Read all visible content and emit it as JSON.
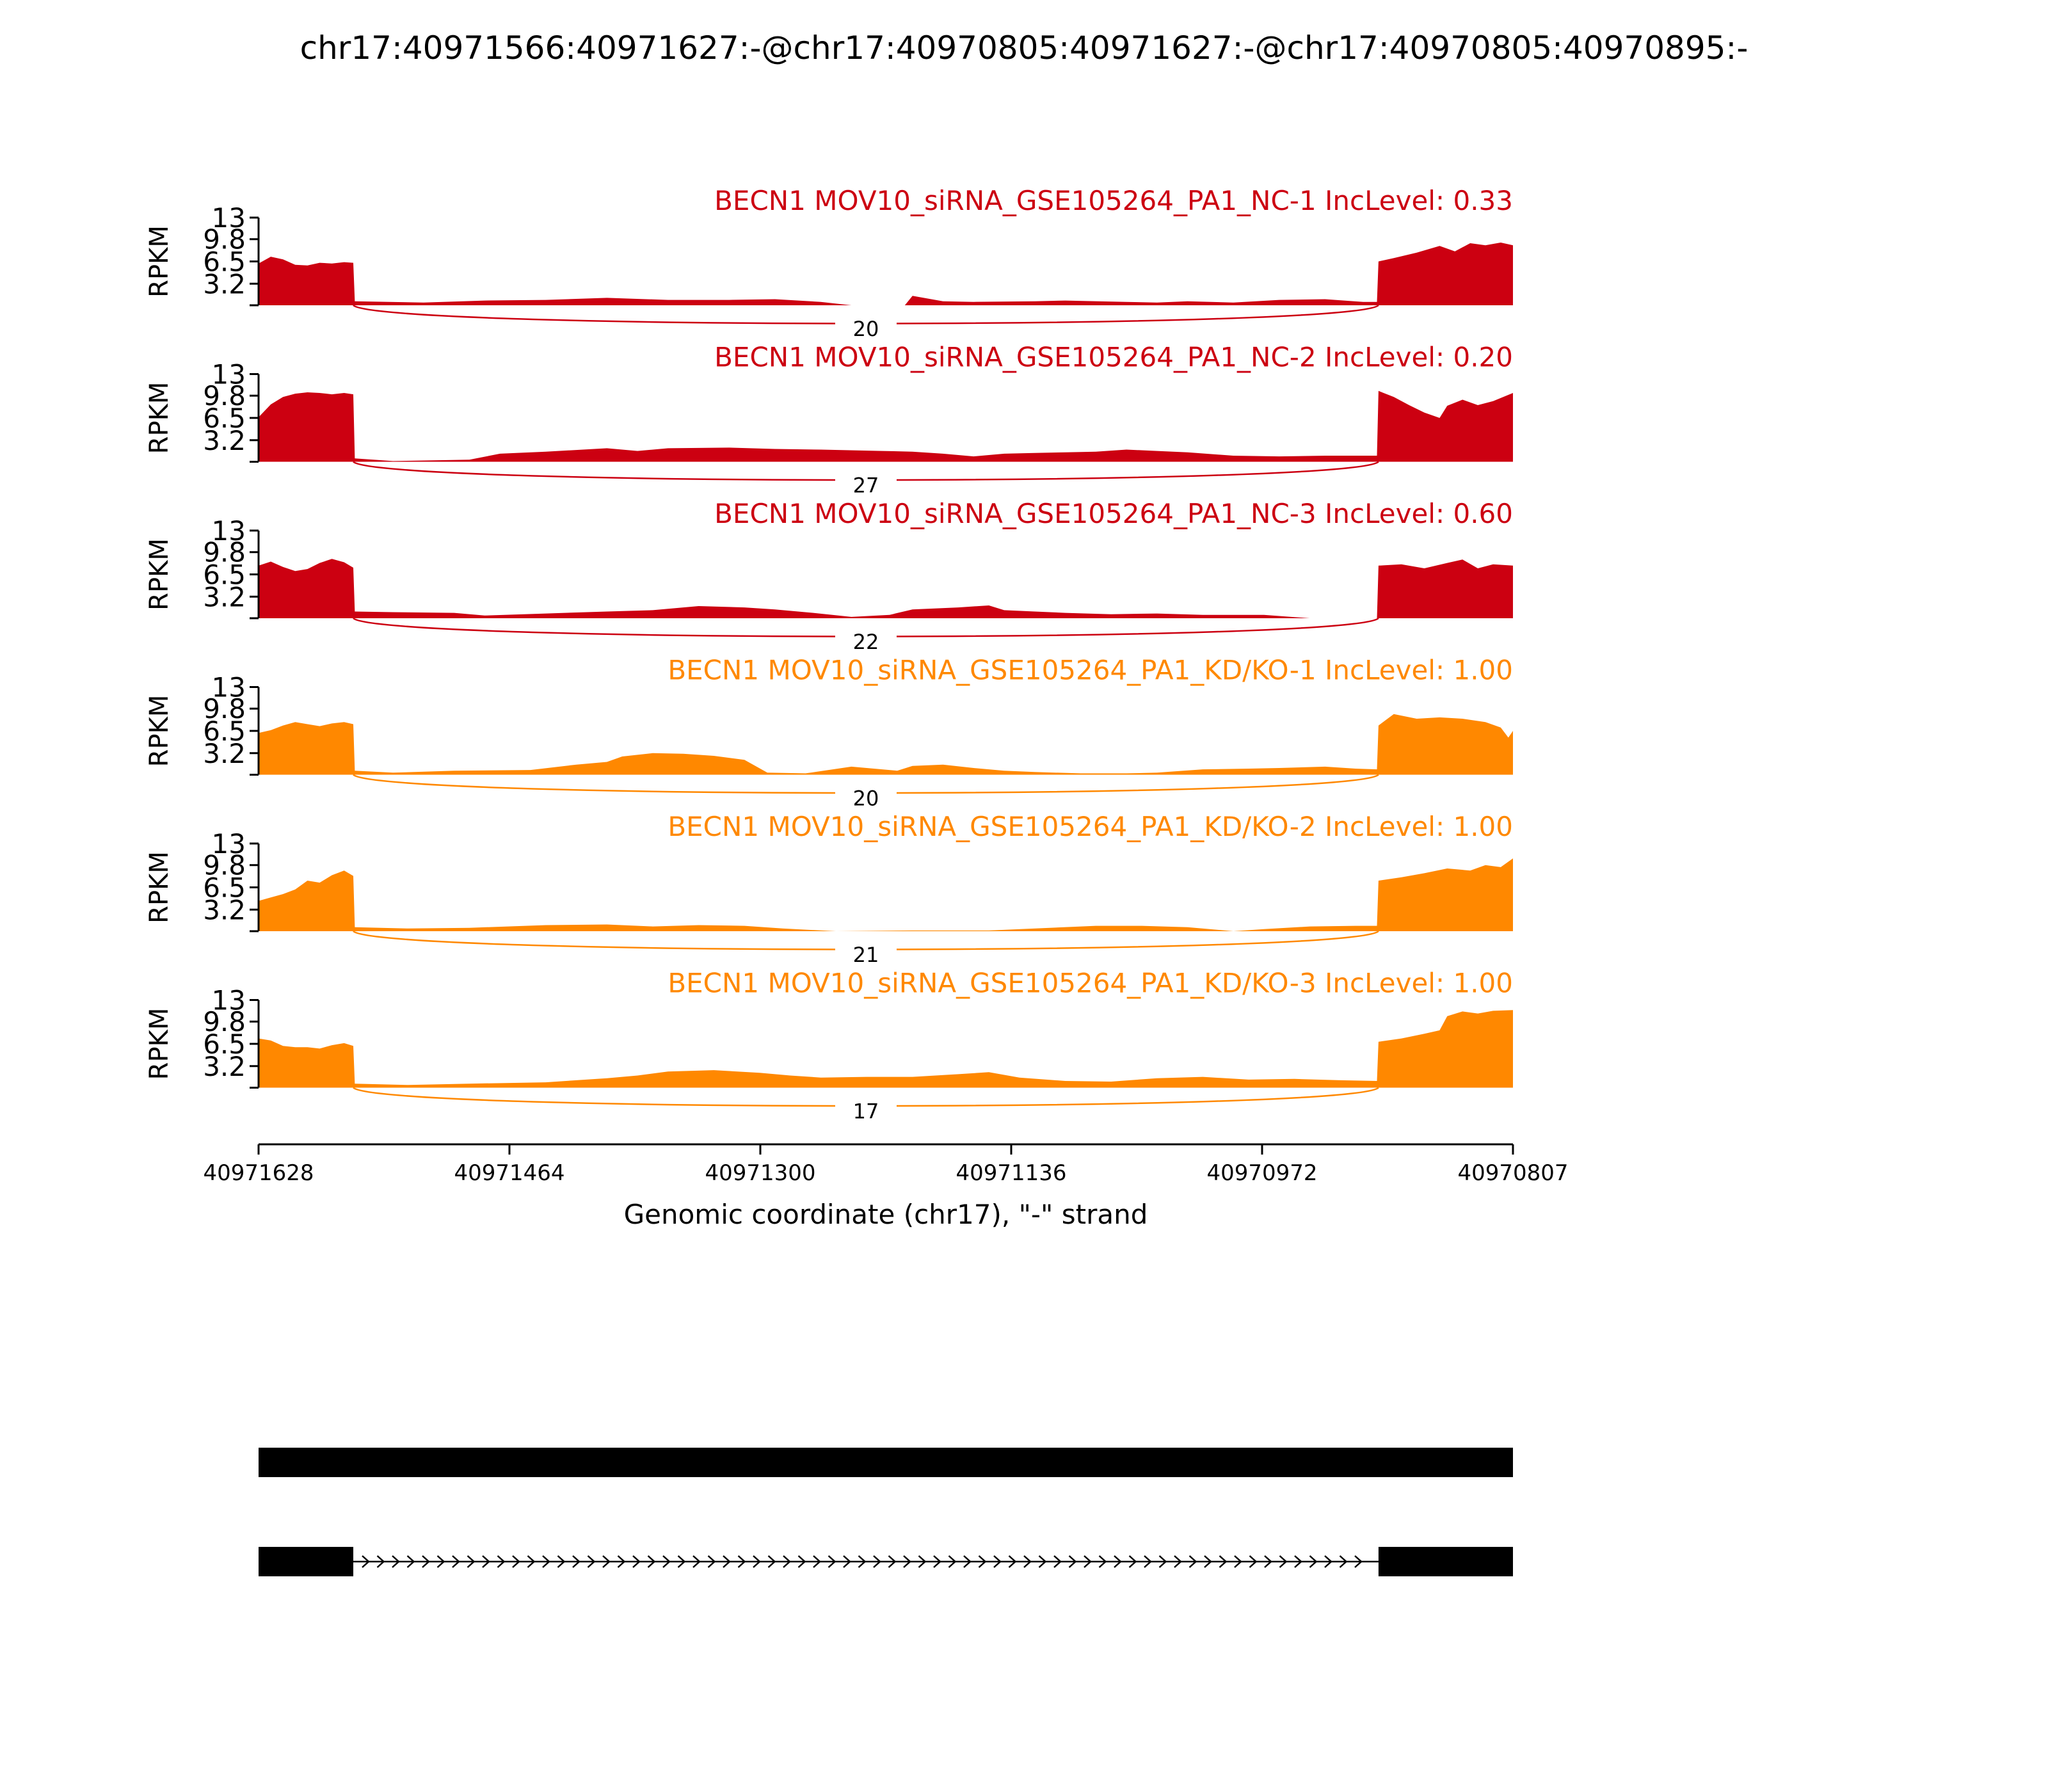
{
  "chart_data": {
    "type": "area",
    "title": "chr17:40971566:40971627:-@chr17:40970805:40971627:-@chr17:40970805:40970895:-",
    "xlabel": "Genomic coordinate (chr17), \"-\" strand",
    "ylabel": "RPKM",
    "x_reversed": true,
    "xlim": [
      40971628,
      40970807
    ],
    "x_ticks": [
      "40971628",
      "40971464",
      "40971300",
      "40971136",
      "40970972",
      "40970807"
    ],
    "ylim": [
      0,
      13
    ],
    "y_ticks": [
      "13",
      "9.8",
      "6.5",
      "3.2"
    ],
    "exons": [
      [
        40971628,
        40971566
      ],
      [
        40970895,
        40970807
      ]
    ],
    "colors": {
      "NC": "#cc0011",
      "KD": "#ff8800"
    },
    "tracks": [
      {
        "name": "BECN1 MOV10_siRNA_GSE105264_PA1_NC-1 IncLevel: 0.33",
        "group": "NC",
        "junction_count": "20",
        "coverage": [
          [
            40971628,
            6.2
          ],
          [
            40971620,
            7.2
          ],
          [
            40971612,
            6.8
          ],
          [
            40971604,
            6.0
          ],
          [
            40971596,
            5.9
          ],
          [
            40971588,
            6.3
          ],
          [
            40971580,
            6.2
          ],
          [
            40971572,
            6.4
          ],
          [
            40971566,
            6.3
          ],
          [
            40971565,
            0.6
          ],
          [
            40971520,
            0.4
          ],
          [
            40971480,
            0.7
          ],
          [
            40971440,
            0.8
          ],
          [
            40971400,
            1.1
          ],
          [
            40971360,
            0.8
          ],
          [
            40971320,
            0.8
          ],
          [
            40971290,
            0.9
          ],
          [
            40971260,
            0.5
          ],
          [
            40971240,
            0.0
          ],
          [
            40971205,
            0.0
          ],
          [
            40971200,
            1.4
          ],
          [
            40971180,
            0.6
          ],
          [
            40971160,
            0.5
          ],
          [
            40971120,
            0.6
          ],
          [
            40971100,
            0.7
          ],
          [
            40971060,
            0.5
          ],
          [
            40971040,
            0.4
          ],
          [
            40971020,
            0.6
          ],
          [
            40970990,
            0.4
          ],
          [
            40970960,
            0.8
          ],
          [
            40970930,
            0.9
          ],
          [
            40970905,
            0.5
          ],
          [
            40970896,
            0.5
          ],
          [
            40970895,
            6.5
          ],
          [
            40970885,
            7.0
          ],
          [
            40970870,
            7.8
          ],
          [
            40970855,
            8.8
          ],
          [
            40970845,
            8.0
          ],
          [
            40970835,
            9.2
          ],
          [
            40970825,
            8.9
          ],
          [
            40970815,
            9.3
          ],
          [
            40970807,
            8.9
          ]
        ]
      },
      {
        "name": "BECN1 MOV10_siRNA_GSE105264_PA1_NC-2 IncLevel: 0.20",
        "group": "NC",
        "junction_count": "27",
        "coverage": [
          [
            40971628,
            6.6
          ],
          [
            40971620,
            8.5
          ],
          [
            40971612,
            9.6
          ],
          [
            40971604,
            10.1
          ],
          [
            40971596,
            10.3
          ],
          [
            40971588,
            10.2
          ],
          [
            40971580,
            10.0
          ],
          [
            40971572,
            10.2
          ],
          [
            40971566,
            10.0
          ],
          [
            40971565,
            0.5
          ],
          [
            40971540,
            0.1
          ],
          [
            40971490,
            0.3
          ],
          [
            40971470,
            1.2
          ],
          [
            40971440,
            1.5
          ],
          [
            40971400,
            2.0
          ],
          [
            40971380,
            1.6
          ],
          [
            40971360,
            2.0
          ],
          [
            40971320,
            2.1
          ],
          [
            40971290,
            1.9
          ],
          [
            40971260,
            1.8
          ],
          [
            40971220,
            1.6
          ],
          [
            40971200,
            1.5
          ],
          [
            40971180,
            1.2
          ],
          [
            40971160,
            0.8
          ],
          [
            40971140,
            1.2
          ],
          [
            40971120,
            1.3
          ],
          [
            40971100,
            1.4
          ],
          [
            40971080,
            1.5
          ],
          [
            40971060,
            1.8
          ],
          [
            40971040,
            1.6
          ],
          [
            40971020,
            1.4
          ],
          [
            40970990,
            0.9
          ],
          [
            40970960,
            0.8
          ],
          [
            40970930,
            0.9
          ],
          [
            40970896,
            0.9
          ],
          [
            40970895,
            10.5
          ],
          [
            40970885,
            9.6
          ],
          [
            40970875,
            8.4
          ],
          [
            40970865,
            7.3
          ],
          [
            40970855,
            6.5
          ],
          [
            40970850,
            8.3
          ],
          [
            40970840,
            9.2
          ],
          [
            40970830,
            8.4
          ],
          [
            40970820,
            9.0
          ],
          [
            40970807,
            10.2
          ]
        ]
      },
      {
        "name": "BECN1 MOV10_siRNA_GSE105264_PA1_NC-3 IncLevel: 0.60",
        "group": "NC",
        "junction_count": "22",
        "coverage": [
          [
            40971628,
            7.8
          ],
          [
            40971620,
            8.4
          ],
          [
            40971612,
            7.6
          ],
          [
            40971604,
            7.0
          ],
          [
            40971596,
            7.3
          ],
          [
            40971588,
            8.2
          ],
          [
            40971580,
            8.8
          ],
          [
            40971572,
            8.3
          ],
          [
            40971566,
            7.5
          ],
          [
            40971565,
            1.0
          ],
          [
            40971540,
            0.9
          ],
          [
            40971500,
            0.8
          ],
          [
            40971480,
            0.4
          ],
          [
            40971440,
            0.7
          ],
          [
            40971400,
            1.0
          ],
          [
            40971370,
            1.2
          ],
          [
            40971340,
            1.8
          ],
          [
            40971310,
            1.6
          ],
          [
            40971290,
            1.3
          ],
          [
            40971265,
            0.8
          ],
          [
            40971240,
            0.2
          ],
          [
            40971215,
            0.5
          ],
          [
            40971200,
            1.3
          ],
          [
            40971170,
            1.6
          ],
          [
            40971150,
            1.9
          ],
          [
            40971140,
            1.2
          ],
          [
            40971120,
            1.0
          ],
          [
            40971100,
            0.8
          ],
          [
            40971070,
            0.6
          ],
          [
            40971040,
            0.7
          ],
          [
            40971010,
            0.5
          ],
          [
            40970970,
            0.5
          ],
          [
            40970940,
            0.0
          ],
          [
            40970896,
            0.0
          ],
          [
            40970895,
            7.8
          ],
          [
            40970880,
            8.0
          ],
          [
            40970865,
            7.4
          ],
          [
            40970850,
            8.2
          ],
          [
            40970840,
            8.7
          ],
          [
            40970830,
            7.4
          ],
          [
            40970820,
            8.0
          ],
          [
            40970807,
            7.8
          ]
        ]
      },
      {
        "name": "BECN1 MOV10_siRNA_GSE105264_PA1_KD/KO-1 IncLevel: 1.00",
        "group": "KD",
        "junction_count": "20",
        "coverage": [
          [
            40971628,
            6.2
          ],
          [
            40971620,
            6.6
          ],
          [
            40971612,
            7.3
          ],
          [
            40971604,
            7.8
          ],
          [
            40971596,
            7.5
          ],
          [
            40971588,
            7.2
          ],
          [
            40971580,
            7.6
          ],
          [
            40971572,
            7.8
          ],
          [
            40971566,
            7.5
          ],
          [
            40971565,
            0.6
          ],
          [
            40971540,
            0.3
          ],
          [
            40971500,
            0.6
          ],
          [
            40971450,
            0.7
          ],
          [
            40971420,
            1.5
          ],
          [
            40971400,
            1.9
          ],
          [
            40971390,
            2.7
          ],
          [
            40971370,
            3.2
          ],
          [
            40971350,
            3.1
          ],
          [
            40971330,
            2.8
          ],
          [
            40971310,
            2.2
          ],
          [
            40971295,
            0.3
          ],
          [
            40971270,
            0.2
          ],
          [
            40971240,
            1.2
          ],
          [
            40971210,
            0.6
          ],
          [
            40971200,
            1.3
          ],
          [
            40971180,
            1.5
          ],
          [
            40971160,
            1.0
          ],
          [
            40971140,
            0.6
          ],
          [
            40971120,
            0.4
          ],
          [
            40971090,
            0.2
          ],
          [
            40971060,
            0.2
          ],
          [
            40971040,
            0.3
          ],
          [
            40971010,
            0.8
          ],
          [
            40970980,
            0.9
          ],
          [
            40970960,
            1.0
          ],
          [
            40970930,
            1.2
          ],
          [
            40970910,
            0.9
          ],
          [
            40970896,
            0.8
          ],
          [
            40970895,
            7.3
          ],
          [
            40970885,
            9.0
          ],
          [
            40970870,
            8.3
          ],
          [
            40970855,
            8.5
          ],
          [
            40970840,
            8.3
          ],
          [
            40970825,
            7.8
          ],
          [
            40970815,
            7.0
          ],
          [
            40970810,
            5.5
          ],
          [
            40970807,
            6.5
          ]
        ]
      },
      {
        "name": "BECN1 MOV10_siRNA_GSE105264_PA1_KD/KO-2 IncLevel: 1.00",
        "group": "KD",
        "junction_count": "21",
        "coverage": [
          [
            40971628,
            4.5
          ],
          [
            40971620,
            5.0
          ],
          [
            40971612,
            5.5
          ],
          [
            40971604,
            6.2
          ],
          [
            40971596,
            7.5
          ],
          [
            40971588,
            7.2
          ],
          [
            40971580,
            8.3
          ],
          [
            40971572,
            9.0
          ],
          [
            40971566,
            8.2
          ],
          [
            40971565,
            0.6
          ],
          [
            40971530,
            0.4
          ],
          [
            40971490,
            0.5
          ],
          [
            40971440,
            0.9
          ],
          [
            40971400,
            1.0
          ],
          [
            40971370,
            0.7
          ],
          [
            40971340,
            0.9
          ],
          [
            40971310,
            0.8
          ],
          [
            40971285,
            0.4
          ],
          [
            40971250,
            0.0
          ],
          [
            40971200,
            0.1
          ],
          [
            40971150,
            0.1
          ],
          [
            40971110,
            0.5
          ],
          [
            40971080,
            0.8
          ],
          [
            40971050,
            0.8
          ],
          [
            40971020,
            0.6
          ],
          [
            40970990,
            0.0
          ],
          [
            40970970,
            0.3
          ],
          [
            40970940,
            0.7
          ],
          [
            40970910,
            0.8
          ],
          [
            40970896,
            0.8
          ],
          [
            40970895,
            7.5
          ],
          [
            40970880,
            8.0
          ],
          [
            40970865,
            8.6
          ],
          [
            40970850,
            9.3
          ],
          [
            40970835,
            9.0
          ],
          [
            40970825,
            9.8
          ],
          [
            40970815,
            9.5
          ],
          [
            40970807,
            10.8
          ]
        ]
      },
      {
        "name": "BECN1 MOV10_siRNA_GSE105264_PA1_KD/KO-3 IncLevel: 1.00",
        "group": "KD",
        "junction_count": "17",
        "coverage": [
          [
            40971628,
            7.3
          ],
          [
            40971620,
            7.0
          ],
          [
            40971612,
            6.2
          ],
          [
            40971604,
            6.0
          ],
          [
            40971596,
            6.0
          ],
          [
            40971588,
            5.8
          ],
          [
            40971580,
            6.3
          ],
          [
            40971572,
            6.6
          ],
          [
            40971566,
            6.2
          ],
          [
            40971565,
            0.6
          ],
          [
            40971530,
            0.4
          ],
          [
            40971490,
            0.6
          ],
          [
            40971440,
            0.8
          ],
          [
            40971400,
            1.4
          ],
          [
            40971380,
            1.8
          ],
          [
            40971360,
            2.4
          ],
          [
            40971330,
            2.6
          ],
          [
            40971300,
            2.2
          ],
          [
            40971280,
            1.8
          ],
          [
            40971260,
            1.5
          ],
          [
            40971230,
            1.6
          ],
          [
            40971200,
            1.6
          ],
          [
            40971170,
            2.0
          ],
          [
            40971150,
            2.3
          ],
          [
            40971130,
            1.5
          ],
          [
            40971100,
            1.0
          ],
          [
            40971070,
            0.9
          ],
          [
            40971040,
            1.4
          ],
          [
            40971010,
            1.6
          ],
          [
            40970980,
            1.2
          ],
          [
            40970950,
            1.3
          ],
          [
            40970920,
            1.1
          ],
          [
            40970896,
            1.0
          ],
          [
            40970895,
            6.8
          ],
          [
            40970880,
            7.3
          ],
          [
            40970865,
            8.0
          ],
          [
            40970855,
            8.5
          ],
          [
            40970850,
            10.6
          ],
          [
            40970840,
            11.3
          ],
          [
            40970830,
            11.0
          ],
          [
            40970820,
            11.4
          ],
          [
            40970807,
            11.5
          ]
        ]
      }
    ],
    "transcripts": [
      {
        "exons": [
          [
            40971628,
            40970807
          ]
        ],
        "intron_arrows": false
      },
      {
        "exons": [
          [
            40971628,
            40971566
          ],
          [
            40970895,
            40970807
          ]
        ],
        "intron_arrows": true
      }
    ]
  }
}
